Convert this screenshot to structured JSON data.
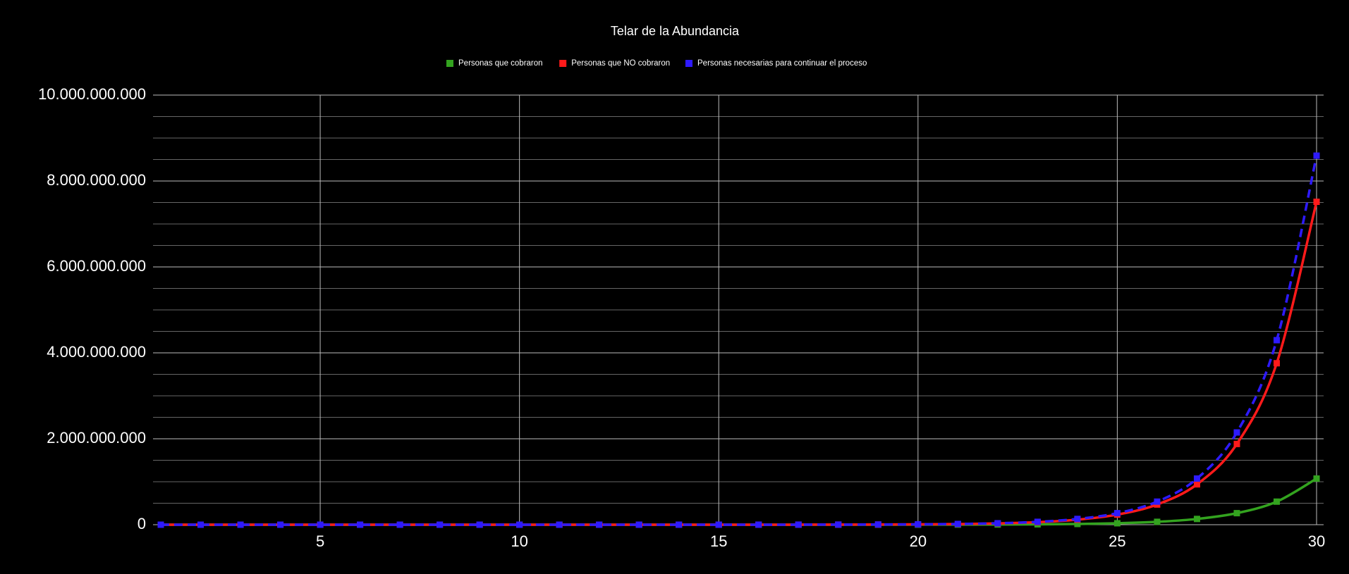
{
  "chart_data": {
    "type": "line",
    "title": "Telar de la Abundancia",
    "x": [
      1,
      2,
      3,
      4,
      5,
      6,
      7,
      8,
      9,
      10,
      11,
      12,
      13,
      14,
      15,
      16,
      17,
      18,
      19,
      20,
      21,
      22,
      23,
      24,
      25,
      26,
      27,
      28,
      29,
      30
    ],
    "series": [
      {
        "name": "Personas que cobraron",
        "color": "#33a31f",
        "dashed": false,
        "values": [
          2,
          4,
          8,
          16,
          32,
          64,
          128,
          256,
          512,
          1024,
          2048,
          4096,
          8192,
          16384,
          32768,
          65536,
          131072,
          262144,
          524288,
          1048576,
          2097152,
          4194304,
          8388608,
          16777216,
          33554432,
          67108864,
          134217728,
          268435456,
          536870912,
          1073741824
        ]
      },
      {
        "name": "Personas que NO cobraron",
        "color": "#ff1a1a",
        "dashed": false,
        "values": [
          14,
          28,
          56,
          112,
          224,
          448,
          896,
          1792,
          3584,
          7168,
          14336,
          28672,
          57344,
          114688,
          229376,
          458752,
          917504,
          1835008,
          3670016,
          7340032,
          14680064,
          29360128,
          58720256,
          117440512,
          234881024,
          469762048,
          939524096,
          1879048192,
          3758096384,
          7516192768
        ]
      },
      {
        "name": "Personas necesarias para continuar el proceso",
        "color": "#2e1aff",
        "dashed": true,
        "values": [
          16,
          32,
          64,
          128,
          256,
          512,
          1024,
          2048,
          4096,
          8192,
          16384,
          32768,
          65536,
          131072,
          262144,
          524288,
          1048576,
          2097152,
          4194304,
          8388608,
          16777216,
          33554432,
          67108864,
          134217728,
          268435456,
          536870912,
          1073741824,
          2147483648,
          4294967296,
          8589934592
        ]
      }
    ],
    "xlim": [
      1,
      30
    ],
    "xticks": [
      5,
      10,
      15,
      20,
      25,
      30
    ],
    "ylim": [
      0,
      10000000000
    ],
    "yticks": [
      0,
      {
        "value": 2000000000,
        "label": "2.000.000.000"
      },
      {
        "value": 4000000000,
        "label": "4.000.000.000"
      },
      {
        "value": 6000000000,
        "label": "6.000.000.000"
      },
      {
        "value": 8000000000,
        "label": "8.000.000.000"
      },
      {
        "value": 10000000000,
        "label": "10.000.000.000"
      }
    ],
    "yminorticks": [
      500000000,
      1000000000,
      1500000000,
      2500000000,
      3000000000,
      3500000000,
      4500000000,
      5000000000,
      5500000000,
      6500000000,
      7000000000,
      7500000000,
      8500000000,
      9000000000,
      9500000000
    ],
    "grid": true,
    "legend": "top"
  }
}
